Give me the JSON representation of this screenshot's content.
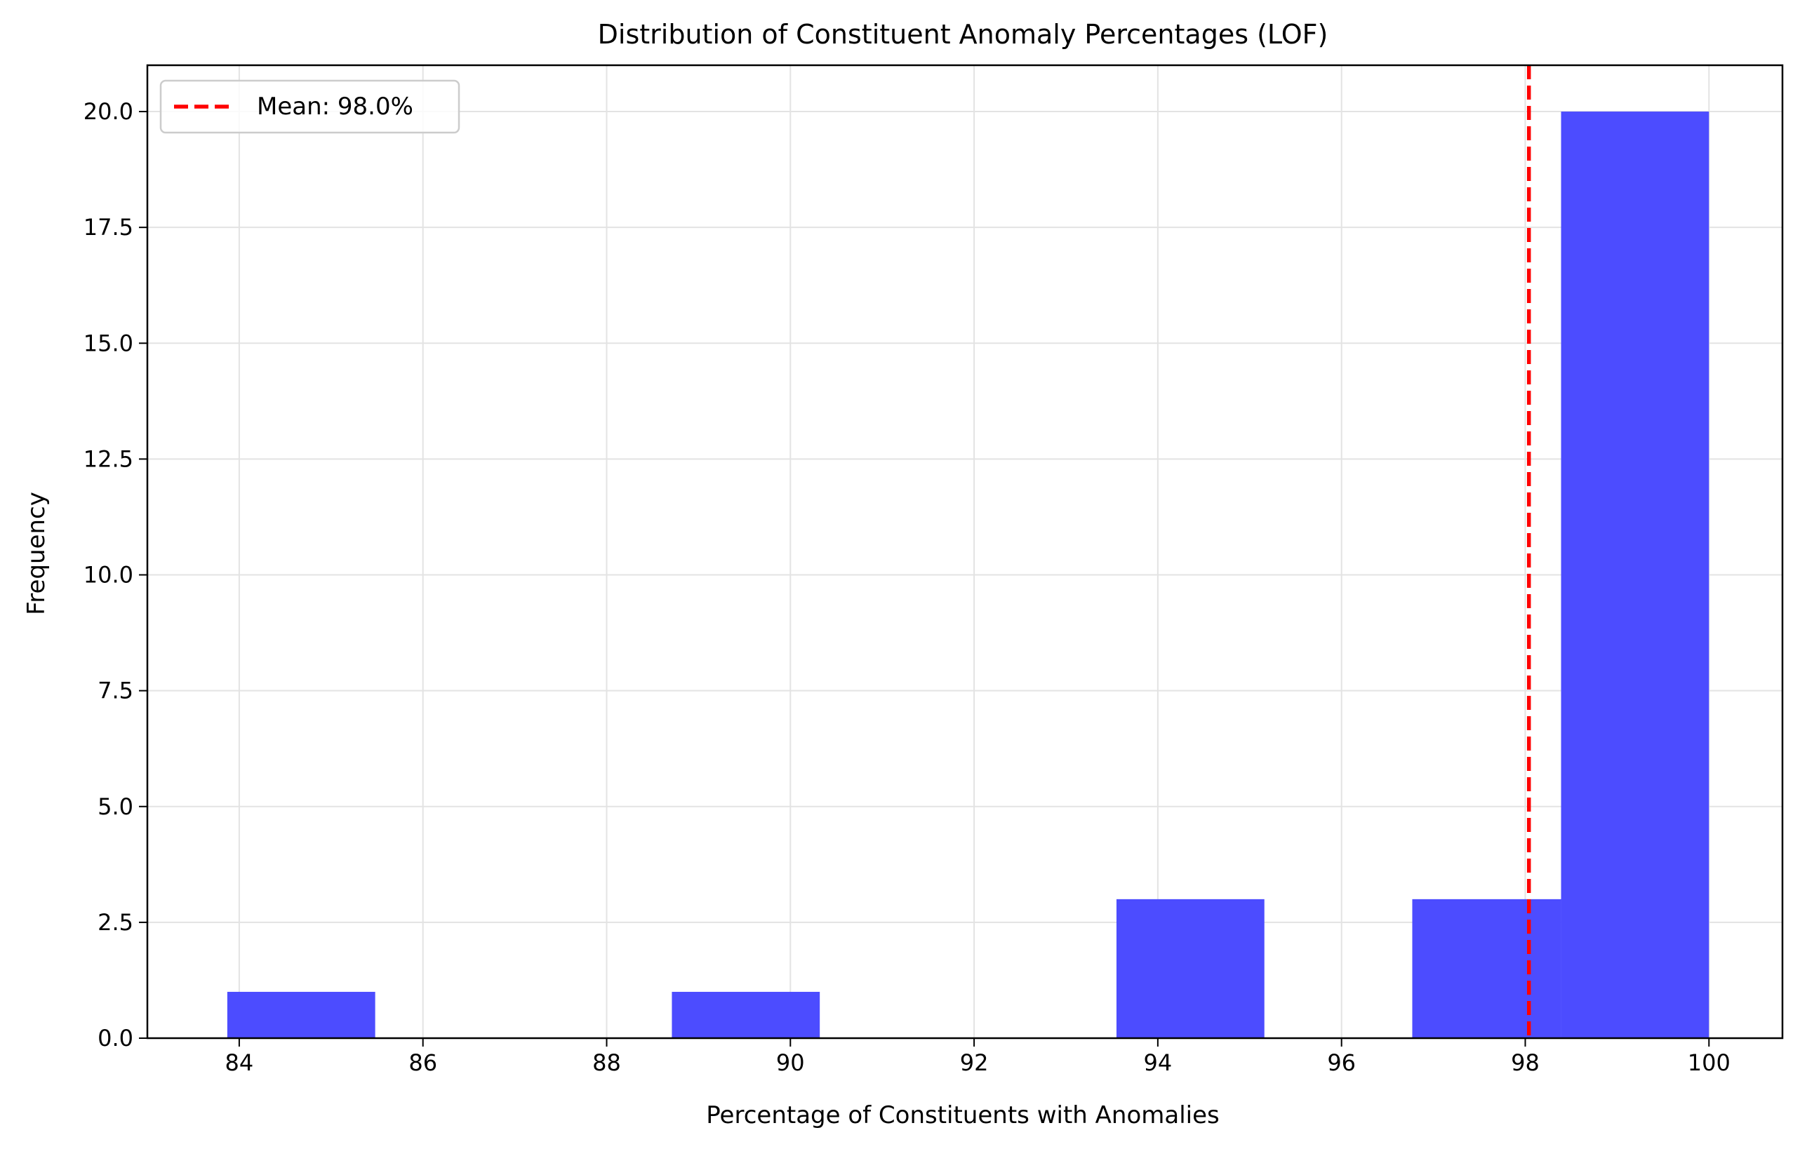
{
  "chart_data": {
    "type": "bar",
    "title": "Distribution of Constituent Anomaly Percentages (LOF)",
    "xlabel": "Percentage of Constituents with Anomalies",
    "ylabel": "Frequency",
    "xlim": [
      83.0,
      100.8
    ],
    "ylim": [
      0,
      21.0
    ],
    "xticks": [
      84,
      86,
      88,
      90,
      92,
      94,
      96,
      98,
      100
    ],
    "xtick_labels": [
      "84",
      "86",
      "88",
      "90",
      "92",
      "94",
      "96",
      "98",
      "100"
    ],
    "yticks": [
      0.0,
      2.5,
      5.0,
      7.5,
      10.0,
      12.5,
      15.0,
      17.5,
      20.0
    ],
    "ytick_labels": [
      "0.0",
      "2.5",
      "5.0",
      "7.5",
      "10.0",
      "12.5",
      "15.0",
      "17.5",
      "20.0"
    ],
    "grid": true,
    "legend_position": "top-left",
    "bins": [
      {
        "start": 83.87,
        "end": 85.48,
        "count": 1
      },
      {
        "start": 85.48,
        "end": 87.1,
        "count": 0
      },
      {
        "start": 87.1,
        "end": 88.71,
        "count": 0
      },
      {
        "start": 88.71,
        "end": 90.32,
        "count": 1
      },
      {
        "start": 90.32,
        "end": 91.94,
        "count": 0
      },
      {
        "start": 91.94,
        "end": 93.55,
        "count": 0
      },
      {
        "start": 93.55,
        "end": 95.16,
        "count": 3
      },
      {
        "start": 95.16,
        "end": 96.77,
        "count": 0
      },
      {
        "start": 96.77,
        "end": 98.39,
        "count": 3
      },
      {
        "start": 98.39,
        "end": 100.0,
        "count": 20
      }
    ],
    "mean_line": {
      "value": 98.04,
      "label": "Mean: 98.0%"
    },
    "colors": {
      "bars": "#4c4cff",
      "mean_line": "#ff0000",
      "grid": "#e3e3e3"
    }
  }
}
